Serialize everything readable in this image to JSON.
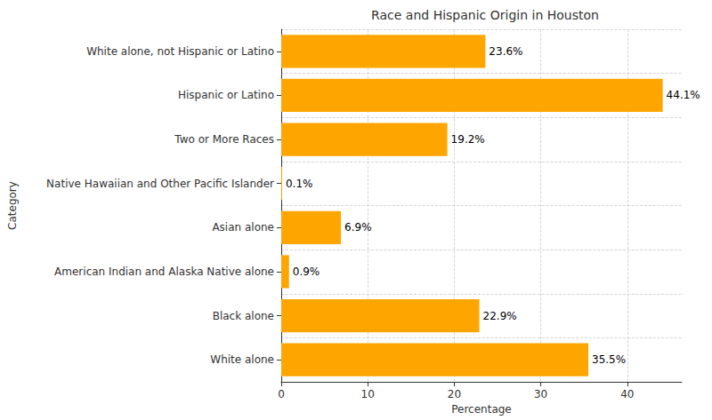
{
  "chart_data": {
    "type": "bar",
    "orientation": "horizontal",
    "title": "Race and Hispanic Origin in Houston",
    "x_label": "Percentage",
    "y_label": "Category",
    "categories": [
      "White alone",
      "Black alone",
      "American Indian and Alaska Native alone",
      "Asian alone",
      "Native Hawaiian and Other Pacific Islander",
      "Two or More Races",
      "Hispanic or Latino",
      "White alone, not Hispanic or Latino"
    ],
    "values": [
      35.5,
      22.9,
      0.9,
      6.9,
      0.1,
      19.2,
      44.1,
      23.6
    ],
    "value_labels": [
      "35.5%",
      "22.9%",
      "0.9%",
      "6.9%",
      "0.1%",
      "19.2%",
      "44.1%",
      "23.6%"
    ],
    "data_labels": true,
    "color": "#ffa500",
    "xlim": [
      0,
      46.3
    ],
    "xticks": [
      0,
      10,
      20,
      30,
      40
    ],
    "grid": true
  }
}
